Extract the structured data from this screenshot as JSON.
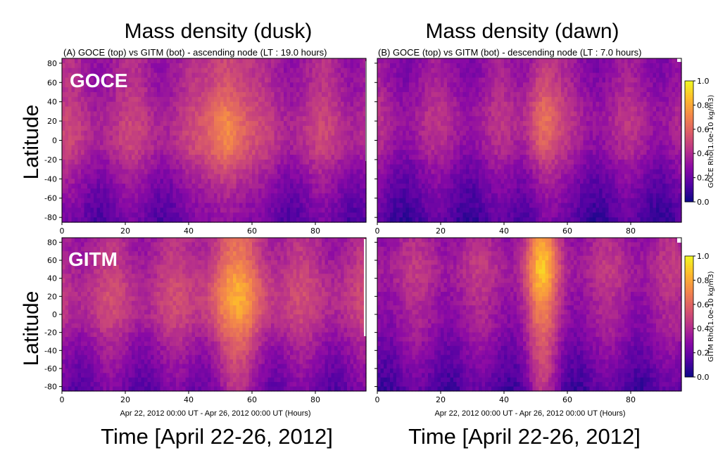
{
  "titles": {
    "left": "Mass density (dusk)",
    "right": "Mass density (dawn)",
    "left_sub": "(A) GOCE (top) vs GITM (bot) - ascending node (LT  : 19.0 hours)",
    "right_sub": "(B) GOCE (top) vs GITM (bot) - descending node (LT  :  7.0 hours)",
    "ylabel": "Latitude",
    "xlabel": "Time [April 22-26, 2012]",
    "xlabel_small": "Apr 22, 2012 00:00 UT - Apr 26, 2012 00:00 UT (Hours)",
    "overlay_top": "GOCE",
    "overlay_bottom": "GITM"
  },
  "chart_data": {
    "type": "heatmap",
    "colormap": "plasma",
    "x_ticks": [
      "0",
      "20",
      "40",
      "60",
      "80"
    ],
    "y_ticks": [
      "80",
      "60",
      "40",
      "20",
      "0",
      "-20",
      "-40",
      "-60",
      "-80"
    ],
    "xlim": [
      0,
      96
    ],
    "ylim": [
      -85,
      85
    ],
    "colorbars": [
      {
        "label": "GOCE Rho(1.0e-10 kg/m3)",
        "ticks": [
          "1.0",
          "0.8",
          "0.6",
          "0.4",
          "0.2",
          "0.0"
        ],
        "range": [
          0,
          1
        ]
      },
      {
        "label": "GITM Rho(1.0e-10 kg/m3)",
        "ticks": [
          "1.0",
          "0.8",
          "0.6",
          "0.4",
          "0.2",
          "0.0"
        ],
        "range": [
          0,
          1
        ]
      }
    ],
    "panels": [
      {
        "name": "GOCE dusk",
        "base": 0.36,
        "storm_peak_hour": 52,
        "storm_amp": 0.34,
        "storm_width": 6,
        "lat_center": 10
      },
      {
        "name": "GOCE dawn",
        "base": 0.3,
        "storm_peak_hour": 52,
        "storm_amp": 0.28,
        "storm_width": 5,
        "lat_center": 20
      },
      {
        "name": "GITM dusk",
        "base": 0.38,
        "storm_peak_hour": 55,
        "storm_amp": 0.3,
        "storm_width": 9,
        "lat_center": 20
      },
      {
        "name": "GITM dawn",
        "base": 0.32,
        "storm_peak_hour": 52,
        "storm_amp": 0.42,
        "storm_width": 5,
        "lat_center": 50
      }
    ]
  }
}
